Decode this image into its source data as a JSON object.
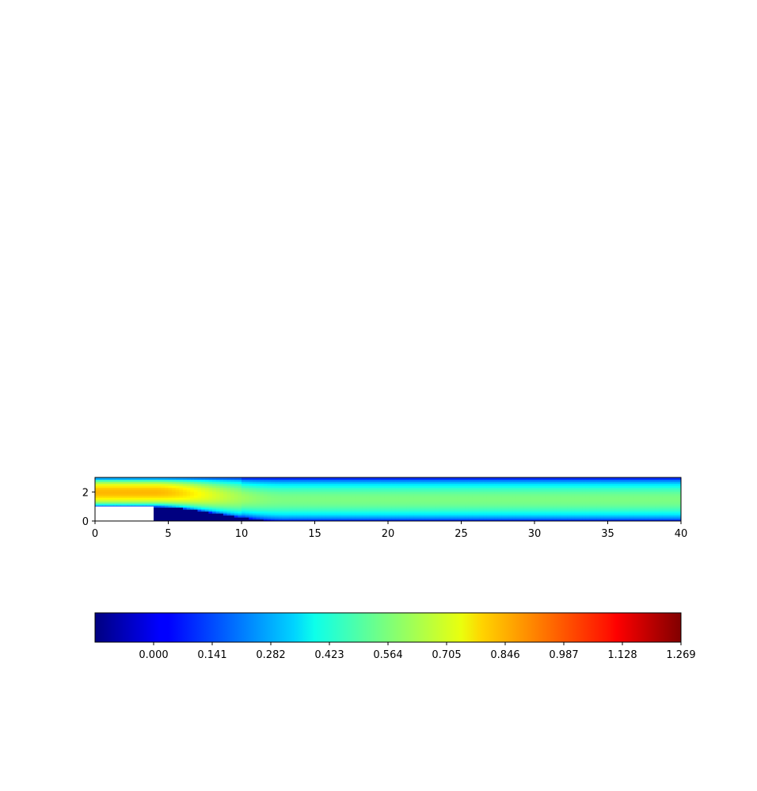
{
  "chart_data": {
    "type": "heatmap",
    "title": "",
    "xlabel": "",
    "ylabel": "",
    "xlim": [
      0,
      40
    ],
    "ylim": [
      0,
      3
    ],
    "x_ticks": [
      "0",
      "5",
      "10",
      "15",
      "20",
      "25",
      "30",
      "35",
      "40"
    ],
    "y_ticks": [
      "0",
      "2"
    ],
    "colormap": "jet",
    "step_obstacle": {
      "x": [
        0,
        4
      ],
      "y": [
        0,
        1
      ],
      "fill": "#ffffff"
    },
    "inlet_channel_y": [
      1,
      3
    ],
    "max_speed_center": {
      "x": 6,
      "y": 1.85
    },
    "colorbar": {
      "orientation": "horizontal",
      "vmin": -0.141,
      "vmax": 1.269,
      "ticks": [
        "0.000",
        "0.141",
        "0.282",
        "0.423",
        "0.564",
        "0.705",
        "0.846",
        "0.987",
        "1.128",
        "1.269"
      ]
    }
  }
}
